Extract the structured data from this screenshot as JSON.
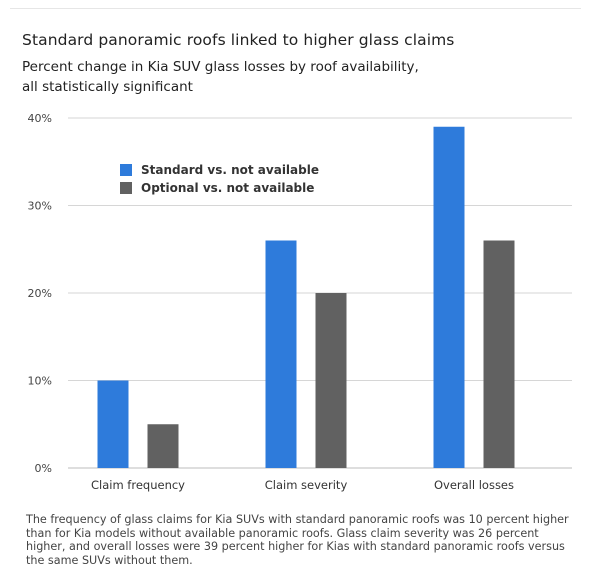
{
  "title": "Standard panoramic roofs linked to higher glass claims",
  "subtitle_line1": "Percent change in Kia SUV glass losses by roof availability,",
  "subtitle_line2": "all statistically significant",
  "caption": "The frequency of glass claims for Kia SUVs with standard panoramic roofs was 10 percent higher than for Kia models without available panoramic roofs. Glass claim severity was 26 percent higher, and overall losses were 39 percent higher for Kias with standard panoramic roofs versus the same SUVs without them.",
  "colors": {
    "standard": "#2e7bdb",
    "optional": "#616161",
    "grid": "#d6d6d6"
  },
  "chart_data": {
    "type": "bar",
    "categories": [
      "Claim frequency",
      "Claim severity",
      "Overall losses"
    ],
    "series": [
      {
        "name": "Standard vs. not available",
        "values": [
          10,
          26,
          39
        ]
      },
      {
        "name": "Optional vs. not available",
        "values": [
          5,
          20,
          26
        ]
      }
    ],
    "yticks": [
      "0%",
      "10%",
      "20%",
      "30%",
      "40%"
    ],
    "ylim": [
      0,
      40
    ],
    "grid": true,
    "legend": "top-left"
  }
}
